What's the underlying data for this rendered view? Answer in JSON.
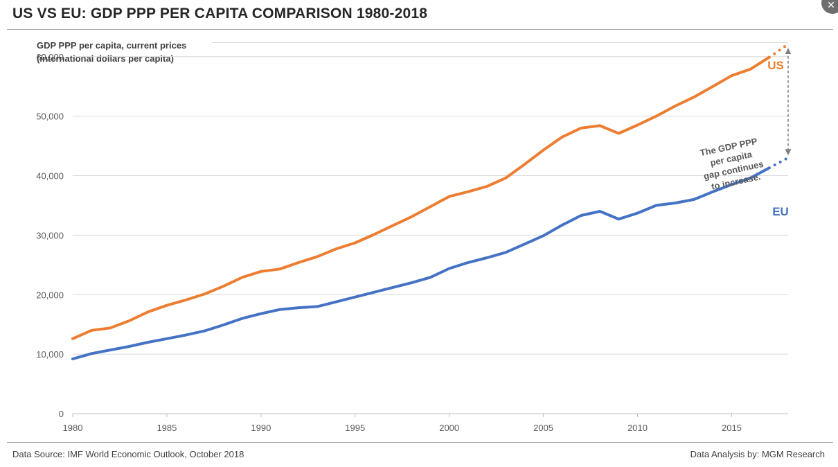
{
  "header": {
    "title": "US VS EU: GDP PPP PER CAPITA COMPARISON 1980-2018"
  },
  "footer": {
    "source": "Data Source: IMF World Economic Outlook, October 2018",
    "analysis": "Data Analysis by: MGM Research"
  },
  "window": {
    "close_icon": "close-icon",
    "close_glyph": "✕"
  },
  "chart_data": {
    "type": "line",
    "title": "US VS EU: GDP PPP PER CAPITA COMPARISON 1980-2018",
    "ylabel_lines": [
      "GDP PPP per capita, current prices",
      "(international dollars per capita)"
    ],
    "xlabel": "",
    "xlim": [
      1980,
      2018
    ],
    "ylim": [
      0,
      60000
    ],
    "yticks": [
      0,
      10000,
      20000,
      30000,
      40000,
      50000,
      60000
    ],
    "ytick_labels": [
      "0",
      "10,000",
      "20,000",
      "30,000",
      "40,000",
      "50,000",
      "60,000"
    ],
    "xticks": [
      1980,
      1985,
      1990,
      1995,
      2000,
      2005,
      2010,
      2015
    ],
    "xtick_labels": [
      "1980",
      "1985",
      "1990",
      "1995",
      "2000",
      "2005",
      "2010",
      "2015"
    ],
    "grid": "horizontal",
    "x": [
      1980,
      1981,
      1982,
      1983,
      1984,
      1985,
      1986,
      1987,
      1988,
      1989,
      1990,
      1991,
      1992,
      1993,
      1994,
      1995,
      1996,
      1997,
      1998,
      1999,
      2000,
      2001,
      2002,
      2003,
      2004,
      2005,
      2006,
      2007,
      2008,
      2009,
      2010,
      2011,
      2012,
      2013,
      2014,
      2015,
      2016,
      2017
    ],
    "projection_x": [
      2017,
      2018
    ],
    "series": [
      {
        "name": "US",
        "color": "#ed7d31",
        "values": [
          12600,
          14000,
          14400,
          15600,
          17100,
          18200,
          19100,
          20100,
          21400,
          22900,
          23900,
          24300,
          25400,
          26400,
          27700,
          28700,
          30100,
          31600,
          33100,
          34800,
          36500,
          37300,
          38200,
          39600,
          41900,
          44300,
          46500,
          48000,
          48400,
          47100,
          48500,
          50000,
          51700,
          53200,
          55000,
          56800,
          57900,
          59900
        ],
        "projection": [
          59900,
          62100
        ]
      },
      {
        "name": "EU",
        "color": "#4472c4",
        "values": [
          9200,
          10100,
          10700,
          11300,
          12000,
          12600,
          13200,
          13900,
          14900,
          16000,
          16800,
          17500,
          17800,
          18000,
          18800,
          19600,
          20400,
          21200,
          22000,
          22900,
          24400,
          25400,
          26200,
          27100,
          28500,
          29900,
          31700,
          33300,
          34000,
          32700,
          33700,
          35000,
          35400,
          36000,
          37300,
          38500,
          39600,
          41300
        ],
        "projection": [
          41300,
          43000
        ]
      }
    ],
    "annotation": {
      "lines": [
        "The GDP PPP",
        "per capita",
        "gap continues",
        "to increase."
      ],
      "x": 2018
    }
  }
}
